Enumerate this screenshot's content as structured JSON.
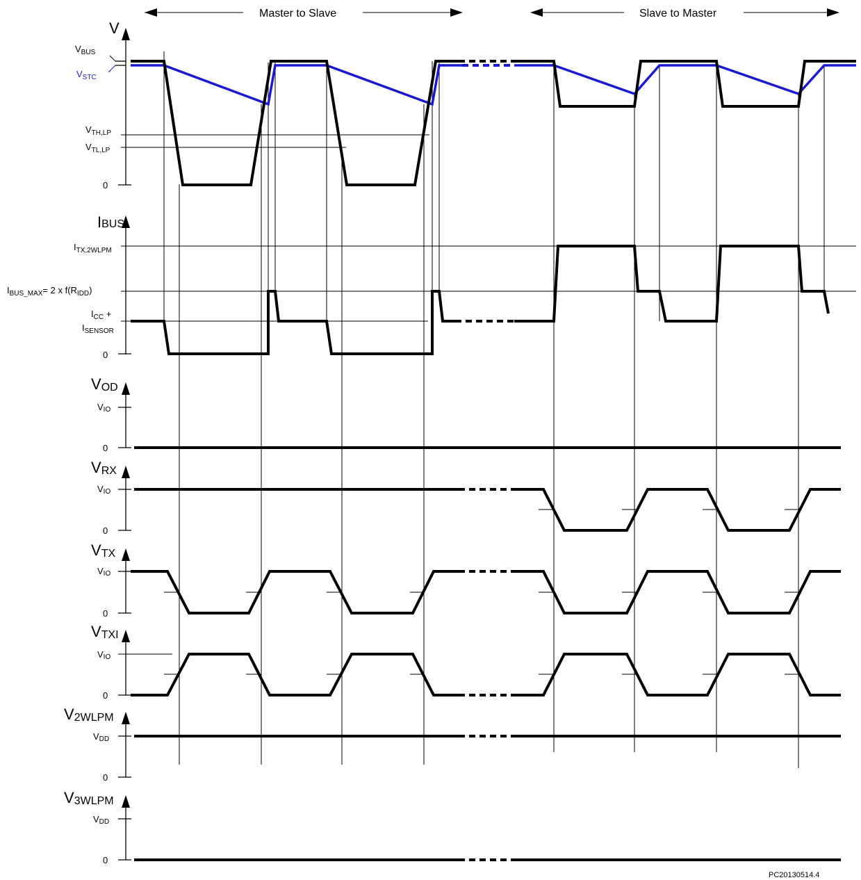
{
  "header": {
    "left_arrow_label": "Master to Slave",
    "right_arrow_label": "Slave to Master"
  },
  "panels": {
    "v": {
      "axis": "V",
      "vbus_main": "V",
      "vbus_sub": "BUS",
      "vstc_main": "V",
      "vstc_sub": "STC",
      "vth_main": "V",
      "vth_sub": "TH,LP",
      "vtl_main": "V",
      "vtl_sub": "TL,LP",
      "zero": "0"
    },
    "ibus": {
      "axis_main": "I",
      "axis_sub": "BUS",
      "itx_main": "I",
      "itx_sub": "TX,2WLPM",
      "imax_a": "I",
      "imax_b": "BUS_MAX",
      "imax_c": "= 2 x f(R",
      "imax_d": "IDD",
      "imax_e": ")",
      "icc_main": "I",
      "icc_sub": "CC",
      "icc_plus": " +",
      "isensor_main": "I",
      "isensor_sub": "SENSOR",
      "zero": "0"
    },
    "vod": {
      "axis_main": "V",
      "axis_sub": "OD",
      "level_main": "V",
      "level_sub": "IO",
      "zero": "0"
    },
    "vrx": {
      "axis_main": "V",
      "axis_sub": "RX",
      "level_main": "V",
      "level_sub": "IO",
      "zero": "0"
    },
    "vtx": {
      "axis_main": "V",
      "axis_sub": "TX",
      "level_main": "V",
      "level_sub": "IO",
      "zero": "0"
    },
    "vtxi": {
      "axis_main": "V",
      "axis_sub": "TXI",
      "level_main": "V",
      "level_sub": "IO",
      "zero": "0"
    },
    "v2wlpm": {
      "axis_main": "V",
      "axis_sub": "2WLPM",
      "level_main": "V",
      "level_sub": "DD",
      "zero": "0"
    },
    "v3wlpm": {
      "axis_main": "V",
      "axis_sub": "3WLPM",
      "level_main": "V",
      "level_sub": "DD",
      "zero": "0"
    }
  },
  "footer": {
    "figure_id": "PC20130514.4"
  },
  "colors": {
    "stc_trace": "#1a1ad4",
    "trace": "#000000"
  }
}
